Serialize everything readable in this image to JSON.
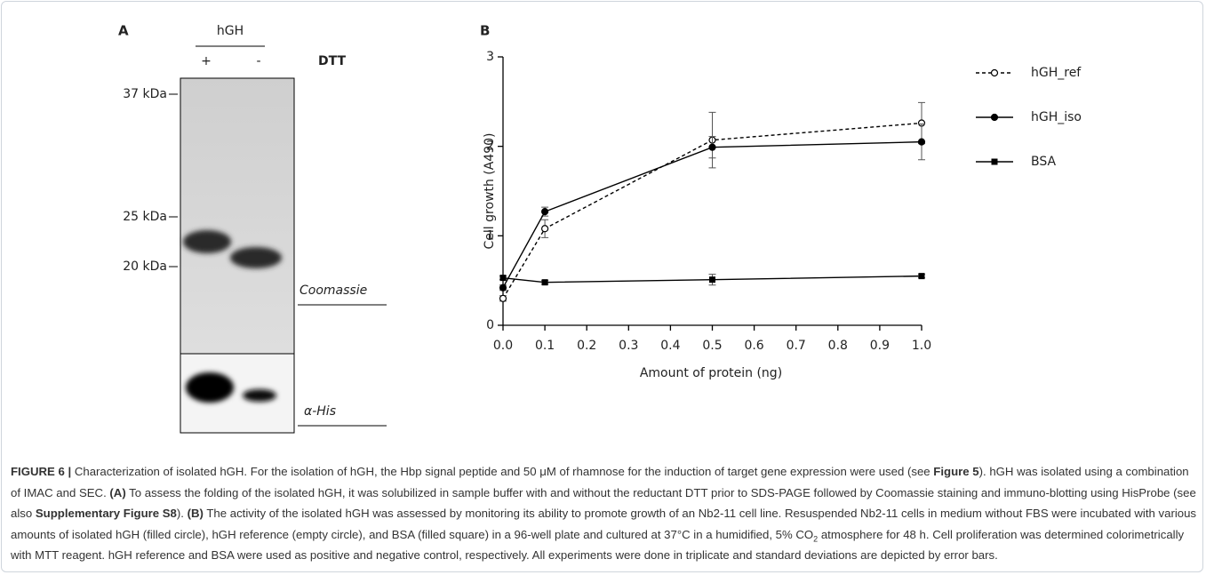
{
  "panel_a": {
    "label": "A",
    "sample": "hGH",
    "lanes": [
      "+",
      "-"
    ],
    "treatment": "DTT",
    "markers": [
      "37 kDa",
      "25 kDa",
      "20 kDa"
    ],
    "stains": [
      "Coomassie",
      "α-His"
    ]
  },
  "chart_data": {
    "type": "line",
    "panel_label": "B",
    "x_label": "Amount of protein (ng)",
    "y_label": "Cell growth (A490)",
    "x": [
      0,
      0.1,
      0.5,
      1.0
    ],
    "xlim": [
      0,
      1.0
    ],
    "xticks": [
      {
        "value": 0,
        "label": "0.0"
      },
      0.1,
      0.2,
      0.3,
      0.4,
      0.5,
      0.6,
      0.7,
      0.8,
      0.9,
      {
        "value": 1.0,
        "label": "1.0"
      }
    ],
    "ylim": [
      0,
      3
    ],
    "yticks": [
      0,
      1,
      2,
      3
    ],
    "legend": "right",
    "series": [
      {
        "name": "hGH_ref",
        "color": "#000000",
        "line_style": "dashed",
        "marker": "open-circle",
        "values": [
          0.3,
          1.08,
          2.07,
          2.26
        ],
        "errors": [
          0.03,
          0.1,
          0.31,
          0.23
        ]
      },
      {
        "name": "hGH_iso",
        "color": "#000000",
        "line_style": "solid",
        "marker": "circle",
        "values": [
          0.42,
          1.27,
          1.99,
          2.05
        ],
        "errors": [
          0.03,
          0.05,
          0.12,
          0.2
        ]
      },
      {
        "name": "BSA",
        "color": "#000000",
        "line_style": "solid",
        "marker": "square",
        "values": [
          0.53,
          0.48,
          0.51,
          0.55
        ],
        "errors": [
          0.02,
          0.02,
          0.06,
          0.02
        ]
      }
    ]
  },
  "caption": {
    "runs": [
      {
        "text": "FIGURE 6 |",
        "bold": true
      },
      {
        "text": " Characterization of isolated hGH. For the isolation of hGH, the Hbp signal peptide and 50 μM of rhamnose for the induction of target gene expression were used (see "
      },
      {
        "text": "Figure 5",
        "bold": true
      },
      {
        "text": "). hGH was isolated using a combination of IMAC and SEC. "
      },
      {
        "text": "(A)",
        "bold": true
      },
      {
        "text": " To assess the folding of the isolated hGH, it was solubilized in sample buffer with and without the reductant DTT prior to SDS-PAGE followed by Coomassie staining and immuno-blotting using HisProbe (see also "
      },
      {
        "text": "Supplementary Figure S8",
        "bold": true
      },
      {
        "text": "). "
      },
      {
        "text": "(B)",
        "bold": true
      },
      {
        "text": " The activity of the isolated hGH was assessed by monitoring its ability to promote growth of an Nb2-11 cell line. Resuspended Nb2-11 cells in medium without FBS were incubated with various amounts of isolated hGH (filled circle), hGH reference (empty circle), and BSA (filled square) in a 96-well plate and cultured at 37°C in a humidified, 5% CO"
      },
      {
        "text": "2",
        "sub": true
      },
      {
        "text": " atmosphere for 48 h. Cell proliferation was determined colorimetrically with MTT reagent. hGH reference and BSA were used as positive and negative control, respectively. All experiments were done in triplicate and standard deviations are depicted by error bars."
      }
    ]
  }
}
